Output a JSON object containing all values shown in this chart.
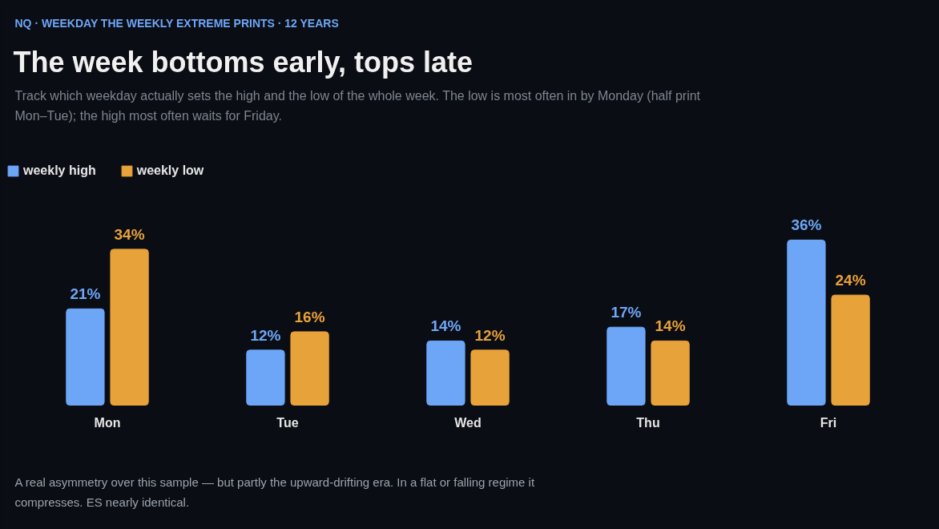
{
  "chart_data": {
    "type": "bar",
    "title": "The week bottoms early, tops late",
    "subtitle": "Track which weekday actually sets the high and the low of the whole week. The low is most often in by Monday (half print Mon–Tue); the high most often waits for Friday.",
    "annotations": [
      "NQ · WEEKDAY THE WEEKLY EXTREME PRINTS · 12 YEARS",
      "A real asymmetry over this sample — but partly the upward-drifting era. In a flat or falling regime it compresses. ES nearly identical."
    ],
    "categories": [
      "Mon",
      "Tue",
      "Wed",
      "Thu",
      "Fri"
    ],
    "series": [
      {
        "name": "weekly high",
        "color": "#6ea6f7",
        "values": [
          21,
          12,
          14,
          17,
          36
        ],
        "value_labels": [
          "21%",
          "12%",
          "14%",
          "17%",
          "36%"
        ]
      },
      {
        "name": "weekly low",
        "color": "#e8a23a",
        "values": [
          34,
          16,
          12,
          14,
          24
        ],
        "value_labels": [
          "34%",
          "16%",
          "12%",
          "14%",
          "24%"
        ]
      }
    ],
    "tick_labels": "x",
    "legend": "top left",
    "grid": false
  }
}
